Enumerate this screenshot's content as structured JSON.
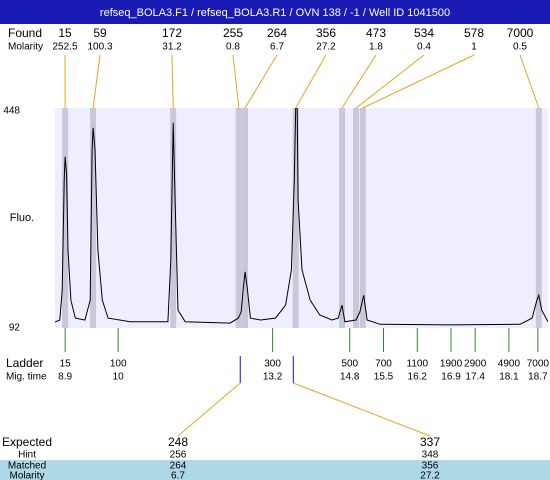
{
  "chart_data": {
    "type": "electropherogram",
    "title": "refseq_BOLA3.F1 / refseq_BOLA3.R1 / OVN 138 / -1 / Well ID 1041500",
    "y_label": "Fluo.",
    "ylim": [
      92,
      448
    ],
    "yticks": [
      92,
      448
    ],
    "xlim": [
      8.69,
      18.91
    ],
    "found": {
      "label": "Found",
      "sizes": [
        15,
        59,
        172,
        255,
        264,
        356,
        473,
        534,
        578,
        7000
      ],
      "molarity_label": "Molarity",
      "molarities": [
        252.5,
        100.3,
        31.2,
        0.8,
        6.7,
        27.2,
        1.8,
        0.4,
        1,
        0.5
      ],
      "times": [
        8.9,
        9.48,
        11.14,
        12.5,
        12.63,
        13.68,
        14.64,
        14.93,
        15.07,
        18.72
      ]
    },
    "trace": {
      "color": "#000000",
      "x": [
        8.69,
        8.79,
        8.84,
        8.88,
        8.9,
        8.93,
        8.96,
        9.02,
        9.11,
        9.31,
        9.42,
        9.46,
        9.48,
        9.52,
        9.58,
        9.67,
        9.79,
        10.25,
        11.03,
        11.09,
        11.14,
        11.18,
        11.24,
        11.39,
        12.32,
        12.49,
        12.55,
        12.59,
        12.63,
        12.68,
        12.74,
        12.95,
        13.26,
        13.47,
        13.59,
        13.65,
        13.68,
        13.71,
        13.73,
        13.81,
        13.98,
        14.18,
        14.43,
        14.56,
        14.64,
        14.7,
        14.93,
        15.01,
        15.09,
        15.16,
        15.43,
        16.88,
        18.33,
        18.58,
        18.68,
        18.72,
        18.78,
        18.91
      ],
      "y": [
        101.7,
        105,
        153,
        331,
        369,
        340,
        218,
        137,
        108,
        105,
        137,
        380,
        416,
        380,
        218,
        137,
        108,
        102,
        102,
        202,
        424,
        299,
        121,
        102,
        100,
        108,
        118,
        153,
        183,
        153,
        108,
        105,
        108,
        129,
        186,
        332,
        448,
        448,
        299,
        186,
        137,
        113,
        105,
        108,
        129,
        102,
        105,
        118,
        145,
        105,
        98,
        97,
        98,
        108,
        137,
        145,
        121,
        102
      ]
    },
    "ladder": {
      "label": "Ladder",
      "sizes": [
        15,
        100,
        300,
        500,
        700,
        1100,
        1900,
        2900,
        4900,
        7000
      ],
      "time_label": "Mig. time",
      "times": [
        8.9,
        10,
        13.2,
        14.8,
        15.5,
        16.2,
        16.9,
        17.4,
        18.1,
        18.7
      ]
    },
    "expected": {
      "label": "Expected",
      "values": [
        248,
        337
      ],
      "times": [
        12.53,
        13.63
      ],
      "hint_label": "Hint",
      "hints": [
        256,
        348
      ],
      "matched_label": "Matched",
      "matched": [
        264,
        356
      ],
      "molarity_label": "Molarity",
      "molarities": [
        6.7,
        27.2
      ]
    }
  }
}
